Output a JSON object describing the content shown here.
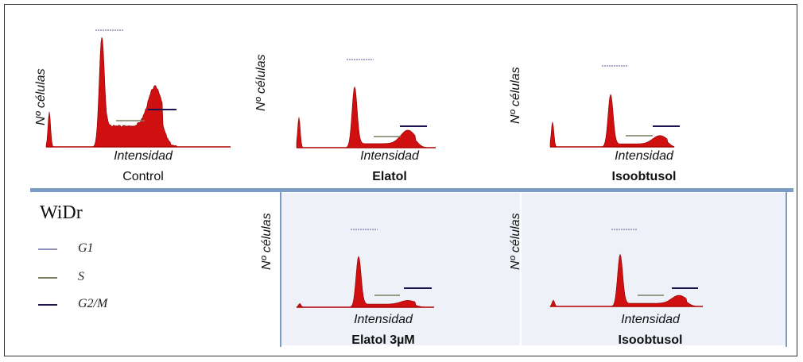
{
  "legend": {
    "title": "WiDr",
    "items": [
      {
        "label": "G1",
        "color": "#8a90b8"
      },
      {
        "label": "S",
        "color": "#7a7d62"
      },
      {
        "label": "G2/M",
        "color": "#1a1450"
      }
    ]
  },
  "colors": {
    "histogram": "#d01010",
    "divider": "#7d9cc4"
  },
  "chart_data": [
    {
      "type": "area",
      "ylabel": "Nº células",
      "xlabel": "Intensidad",
      "sample": "Control",
      "peaks": {
        "sub_g1": 0.32,
        "g1": 1.0,
        "s_plateau": 0.19,
        "g2m": 0.36
      }
    },
    {
      "type": "area",
      "ylabel": "Nº células",
      "xlabel": "Intensidad",
      "sample": "Elatol",
      "peaks": {
        "sub_g1": 0.45,
        "g1": 0.9,
        "s_plateau": 0.06,
        "g2m": 0.2
      }
    },
    {
      "type": "area",
      "ylabel": "Nº células",
      "xlabel": "Intensidad",
      "sample": "Isoobtusol",
      "peaks": {
        "sub_g1": 0.42,
        "g1": 0.88,
        "s_plateau": 0.05,
        "g2m": 0.14
      }
    },
    {
      "type": "area",
      "ylabel": "Nº células",
      "xlabel": "Intensidad",
      "sample": "Elatol 3µM",
      "peaks": {
        "sub_g1": 0.06,
        "g1": 0.82,
        "s_plateau": 0.05,
        "g2m": 0.06
      }
    },
    {
      "type": "area",
      "ylabel": "Nº células",
      "xlabel": "Intensidad",
      "sample": "Isoobtusol",
      "peaks": {
        "sub_g1": 0.1,
        "g1": 0.84,
        "s_plateau": 0.05,
        "g2m": 0.13
      }
    }
  ]
}
